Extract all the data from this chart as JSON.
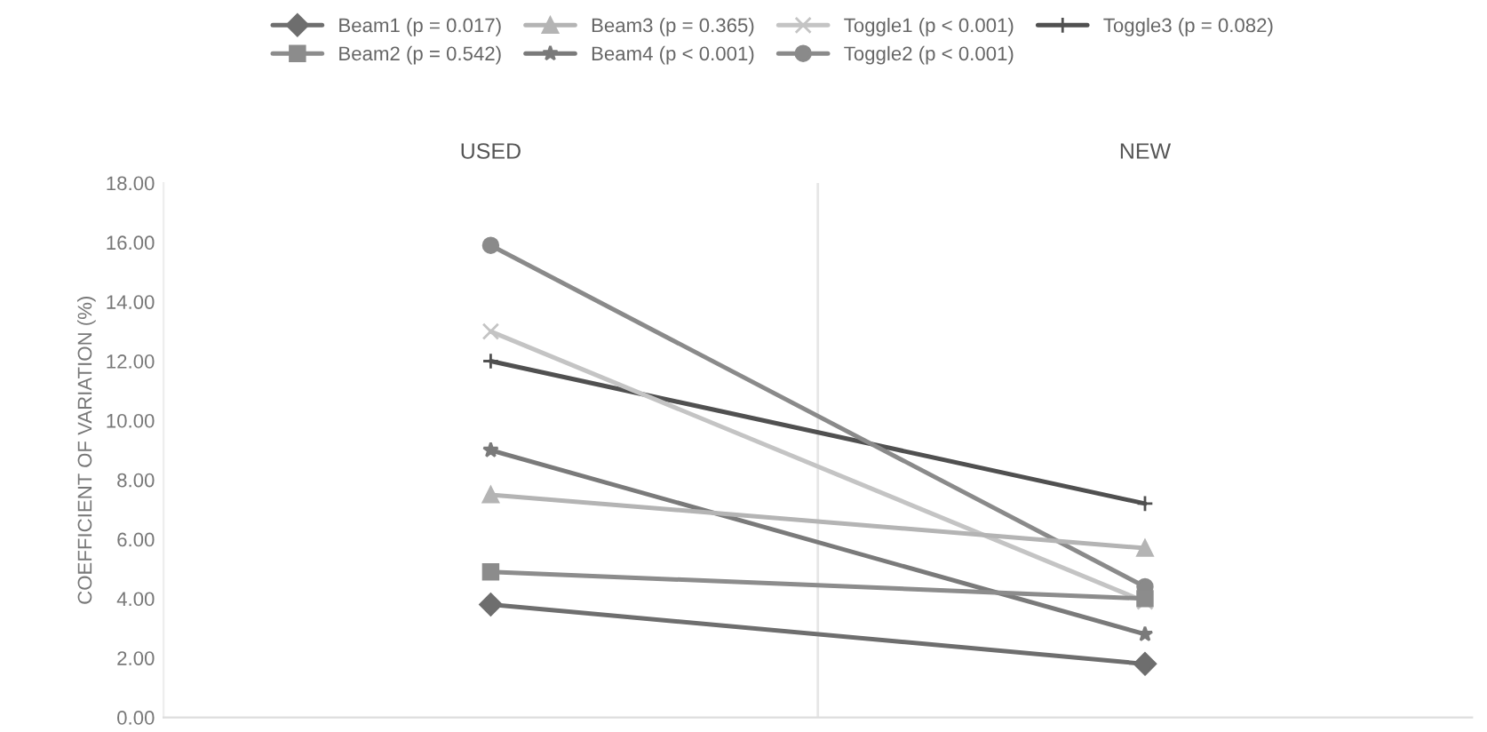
{
  "chart_data": {
    "type": "line",
    "ylabel": "COEFFICIENT OF VARIATION (%)",
    "categories": [
      "USED",
      "NEW"
    ],
    "ylim": [
      0,
      18
    ],
    "yticks": [
      {
        "value": 0,
        "label": "0.00"
      },
      {
        "value": 2,
        "label": "2.00"
      },
      {
        "value": 4,
        "label": "4.00"
      },
      {
        "value": 6,
        "label": "6.00"
      },
      {
        "value": 8,
        "label": "8.00"
      },
      {
        "value": 10,
        "label": "10.00"
      },
      {
        "value": 12,
        "label": "12.00"
      },
      {
        "value": 14,
        "label": "14.00"
      },
      {
        "value": 16,
        "label": "16.00"
      },
      {
        "value": 18,
        "label": "18.00"
      }
    ],
    "grid": false,
    "legend": "top",
    "series": [
      {
        "name": "Beam1 (p = 0.017)",
        "color": "#6e6e6e",
        "marker": "diamond",
        "values": [
          3.8,
          1.8
        ]
      },
      {
        "name": "Beam2 (p = 0.542)",
        "color": "#8c8c8c",
        "marker": "square",
        "values": [
          4.9,
          4.0
        ]
      },
      {
        "name": "Beam3 (p = 0.365)",
        "color": "#b4b4b4",
        "marker": "triangle",
        "values": [
          7.5,
          5.7
        ]
      },
      {
        "name": "Beam4 (p < 0.001)",
        "color": "#7a7a7a",
        "marker": "star",
        "values": [
          9.0,
          2.8
        ]
      },
      {
        "name": "Toggle1 (p < 0.001)",
        "color": "#c4c4c4",
        "marker": "cross",
        "values": [
          13.0,
          3.9
        ]
      },
      {
        "name": "Toggle2 (p < 0.001)",
        "color": "#8a8a8a",
        "marker": "circle",
        "values": [
          15.9,
          4.4
        ]
      },
      {
        "name": "Toggle3 (p = 0.082)",
        "color": "#505050",
        "marker": "plus",
        "values": [
          12.0,
          7.2
        ]
      }
    ]
  }
}
